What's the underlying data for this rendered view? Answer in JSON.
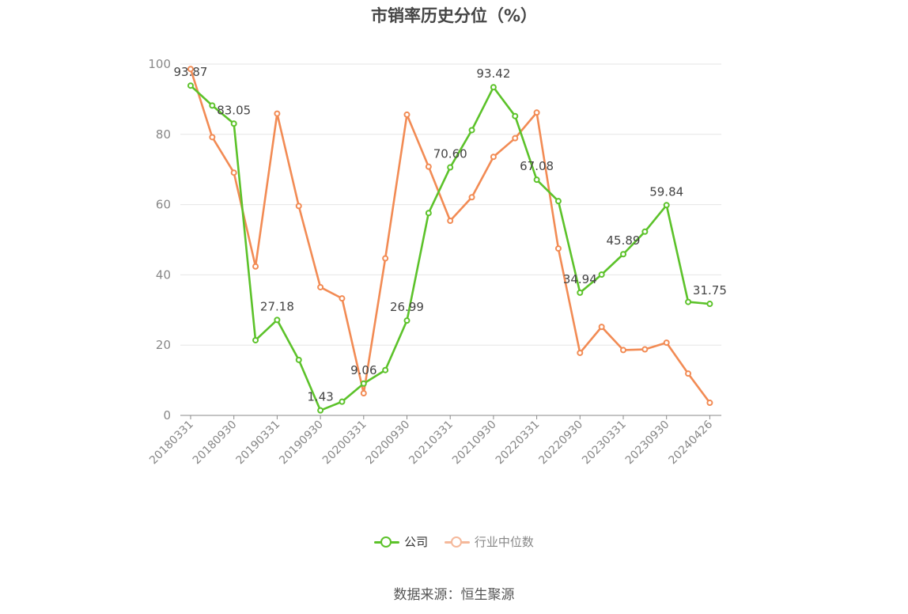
{
  "chart_data": {
    "type": "line",
    "title": "市销率历史分位（%）",
    "ylim": [
      0,
      100
    ],
    "y_ticks": [
      "0",
      "20",
      "40",
      "60",
      "80",
      "100"
    ],
    "grid": true,
    "legend_position": "bottom",
    "x_tick_labels": [
      "20180331",
      "20180930",
      "20190331",
      "20190930",
      "20200331",
      "20200930",
      "20210331",
      "20210930",
      "20220331",
      "20220930",
      "20230331",
      "20230930",
      "20240426"
    ],
    "x": [
      "20180331",
      "20180630",
      "20180930",
      "20181231",
      "20190331",
      "20190630",
      "20190930",
      "20191231",
      "20200331",
      "20200630",
      "20200930",
      "20201231",
      "20210331",
      "20210630",
      "20210930",
      "20211231",
      "20220331",
      "20220630",
      "20220930",
      "20221231",
      "20230331",
      "20230630",
      "20230930",
      "20231231",
      "20240426"
    ],
    "series": [
      {
        "name": "公司",
        "color": "#5cc22a",
        "values": [
          93.87,
          88.2,
          83.05,
          21.4,
          27.18,
          15.8,
          1.43,
          3.9,
          9.06,
          12.9,
          26.99,
          57.6,
          70.6,
          81.2,
          93.42,
          85.2,
          67.08,
          61.0,
          34.94,
          40.1,
          45.89,
          52.3,
          59.84,
          32.3,
          31.75
        ],
        "labels": [
          "93.87",
          "",
          "83.05",
          "",
          "27.18",
          "",
          "1.43",
          "",
          "9.06",
          "",
          "26.99",
          "",
          "70.60",
          "",
          "93.42",
          "",
          "67.08",
          "",
          "34.94",
          "",
          "45.89",
          "",
          "59.84",
          "",
          "31.75"
        ]
      },
      {
        "name": "行业中位数",
        "color": "#f28b54",
        "values": [
          98.6,
          79.2,
          69.1,
          42.4,
          85.9,
          59.6,
          36.5,
          33.3,
          6.3,
          44.7,
          85.6,
          70.8,
          55.4,
          62.1,
          73.6,
          78.9,
          86.2,
          47.5,
          17.8,
          25.2,
          18.6,
          18.8,
          20.7,
          11.9,
          3.6
        ]
      }
    ]
  },
  "legend": {
    "items": [
      {
        "label": "公司",
        "color": "#5cc22a"
      },
      {
        "label": "行业中位数",
        "color": "#f5b89a"
      }
    ]
  },
  "source": "数据来源：恒生聚源"
}
